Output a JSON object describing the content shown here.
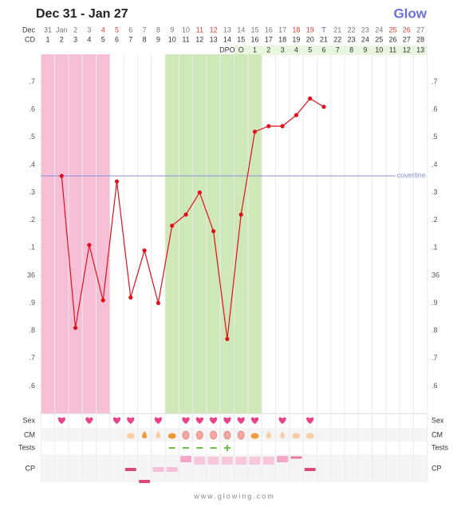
{
  "brand": "Glow",
  "chart_data": {
    "type": "line",
    "title": "Dec 31 - Jan 27",
    "row_labels": {
      "date": "Dec",
      "cd": "CD",
      "dpo": "DPO",
      "sex": "Sex",
      "cm": "CM",
      "tests": "Tests",
      "cp": "CP"
    },
    "categories": [
      "31",
      "Jan",
      "2",
      "3",
      "4",
      "5",
      "6",
      "7",
      "8",
      "9",
      "10",
      "11",
      "12",
      "13",
      "14",
      "15",
      "16",
      "17",
      "18",
      "19",
      "T",
      "21",
      "22",
      "23",
      "24",
      "25",
      "26",
      "27"
    ],
    "date_colors": [
      "#777",
      "#777",
      "#777",
      "#777",
      "#e0403a",
      "#e0403a",
      "#777",
      "#777",
      "#777",
      "#777",
      "#777",
      "#e0403a",
      "#e0403a",
      "#777",
      "#777",
      "#777",
      "#777",
      "#777",
      "#e0403a",
      "#e0403a",
      "#5b5fc7",
      "#777",
      "#777",
      "#777",
      "#777",
      "#e0403a",
      "#e0403a",
      "#777"
    ],
    "cd": [
      1,
      2,
      3,
      4,
      5,
      6,
      7,
      8,
      9,
      10,
      11,
      12,
      13,
      14,
      15,
      16,
      17,
      18,
      19,
      20,
      21,
      22,
      23,
      24,
      25,
      26,
      27,
      28
    ],
    "dpo": [
      null,
      null,
      null,
      null,
      null,
      null,
      null,
      null,
      null,
      null,
      null,
      null,
      null,
      null,
      "O",
      1,
      2,
      3,
      4,
      5,
      6,
      7,
      8,
      9,
      10,
      11,
      12,
      13
    ],
    "series": [
      {
        "name": "Temperature",
        "color": "#e0101e",
        "values": [
          null,
          36.36,
          35.81,
          36.11,
          35.91,
          36.34,
          35.92,
          36.09,
          35.9,
          36.18,
          36.22,
          36.3,
          36.16,
          35.77,
          36.22,
          36.52,
          36.54,
          36.54,
          36.58,
          36.64,
          36.61,
          null,
          null,
          null,
          null,
          null,
          null,
          null
        ]
      }
    ],
    "coverline": {
      "value": 36.36,
      "label": "coverline",
      "color": "#8c8fd8"
    },
    "bands": [
      {
        "from": 1,
        "to": 5,
        "color": "#f6bfd6"
      },
      {
        "from": 10,
        "to": 16,
        "color": "#cfe8b8"
      }
    ],
    "ylim": [
      35.5,
      36.8
    ],
    "yticks": [
      {
        "value": 36.7,
        "label": ".7"
      },
      {
        "value": 36.6,
        "label": ".6"
      },
      {
        "value": 36.5,
        "label": ".5"
      },
      {
        "value": 36.4,
        "label": ".4"
      },
      {
        "value": 36.3,
        "label": ".3"
      },
      {
        "value": 36.2,
        "label": ".2"
      },
      {
        "value": 36.1,
        "label": ".1"
      },
      36,
      {
        "value": 35.9,
        "label": ".9"
      },
      {
        "value": 35.8,
        "label": ".8"
      },
      {
        "value": 35.7,
        "label": ".7"
      },
      {
        "value": 35.6,
        "label": ".6"
      }
    ],
    "footer": "www.glowing.com"
  }
}
